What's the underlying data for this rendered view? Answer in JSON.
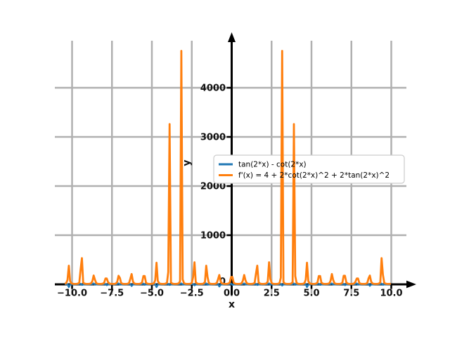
{
  "figure": {
    "background": "#ffffff",
    "title": ""
  },
  "chart_data": {
    "type": "line",
    "title": "",
    "xlabel": "x",
    "ylabel": "y",
    "grid": true,
    "grid_color": "#b0b0b0",
    "axis_color": "#000000",
    "background": "#ffffff",
    "xlim": [
      -10.9,
      11.0
    ],
    "ylim": [
      -215,
      4960
    ],
    "xticks": [
      -10.0,
      -7.5,
      -5.0,
      -2.5,
      0.0,
      2.5,
      5.0,
      7.5,
      10.0
    ],
    "xtick_labels": [
      "−10.0",
      "−7.5",
      "−5.0",
      "−2.5",
      "0.0",
      "2.5",
      "5.0",
      "7.5",
      "10.0"
    ],
    "yticks": [
      0,
      1000,
      2000,
      3000,
      4000
    ],
    "ytick_labels": [
      "0",
      "1000",
      "2000",
      "3000",
      "4000"
    ],
    "x_sample_range": [
      -10.45,
      10.04
    ],
    "sample_step": 0.082,
    "singularity_spacing": 0.7853981633974483,
    "series": [
      {
        "name": "tan(2*x) - cot(2*x)",
        "expression": "tan(2*x) - cot(2*x)",
        "color": "#1f77b4",
        "linewidth": 2.5,
        "visible_clamp": [
          -55,
          20
        ]
      },
      {
        "name": "f'(x) = 4 + 2*cot(2*x)^2 + 2*tan(2*x)^2",
        "expression": "4 + 2*cot(2*x)^2 + 2*tan(2*x)^2",
        "color": "#ff7f0e",
        "linewidth": 2.8,
        "peak_caps_by_abs_k": [
          150,
          190,
          380,
          450,
          4750,
          3260,
          440,
          170,
          210,
          175,
          120,
          180,
          535,
          380
        ],
        "peak_positions_note": "peaks at x = k*pi/4"
      }
    ],
    "legend": {
      "frame_color": "#cccccc",
      "background": "#ffffff",
      "entries": [
        "tan(2*x) - cot(2*x)",
        "f'(x) = 4 + 2*cot(2*x)^2 + 2*tan(2*x)^2"
      ]
    }
  }
}
